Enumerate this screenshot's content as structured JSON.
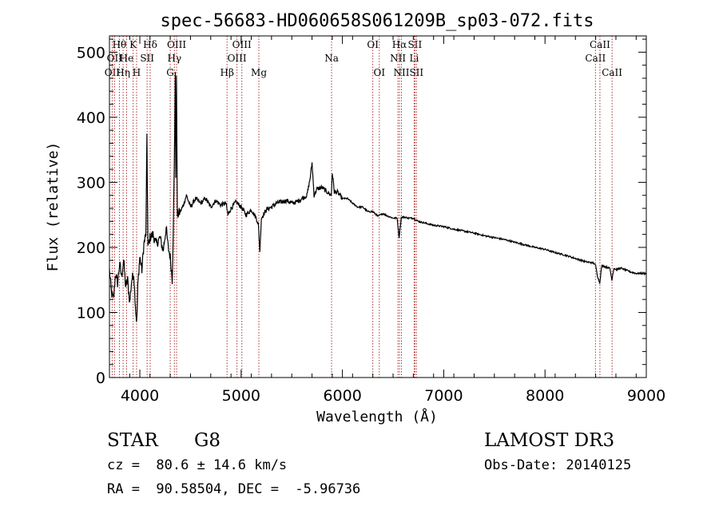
{
  "chart_data": {
    "type": "line",
    "title": "spec-56683-HD060658S061209B_sp03-072.fits",
    "xlabel": "Wavelength (Å)",
    "ylabel": "Flux (relative)",
    "xlim": [
      3700,
      9000
    ],
    "ylim": [
      0,
      525
    ],
    "xticks": [
      4000,
      5000,
      6000,
      7000,
      8000,
      9000
    ],
    "yticks": [
      0,
      100,
      200,
      300,
      400,
      500
    ],
    "colors": {
      "spectrum": "#000000",
      "lines": "#b03030"
    },
    "spectrum": [
      [
        3700,
        165
      ],
      [
        3720,
        130
      ],
      [
        3740,
        120
      ],
      [
        3760,
        160
      ],
      [
        3780,
        145
      ],
      [
        3800,
        175
      ],
      [
        3820,
        155
      ],
      [
        3840,
        180
      ],
      [
        3860,
        140
      ],
      [
        3880,
        150
      ],
      [
        3900,
        115
      ],
      [
        3920,
        150
      ],
      [
        3940,
        160
      ],
      [
        3960,
        100
      ],
      [
        3970,
        85
      ],
      [
        3980,
        140
      ],
      [
        3990,
        165
      ],
      [
        4000,
        185
      ],
      [
        4020,
        165
      ],
      [
        4040,
        205
      ],
      [
        4060,
        220
      ],
      [
        4070,
        375
      ],
      [
        4080,
        200
      ],
      [
        4100,
        215
      ],
      [
        4130,
        220
      ],
      [
        4160,
        205
      ],
      [
        4200,
        215
      ],
      [
        4230,
        195
      ],
      [
        4260,
        230
      ],
      [
        4280,
        200
      ],
      [
        4300,
        185
      ],
      [
        4320,
        150
      ],
      [
        4330,
        230
      ],
      [
        4340,
        320
      ],
      [
        4350,
        470
      ],
      [
        4355,
        300
      ],
      [
        4362,
        470
      ],
      [
        4370,
        250
      ],
      [
        4400,
        255
      ],
      [
        4430,
        265
      ],
      [
        4460,
        280
      ],
      [
        4500,
        262
      ],
      [
        4550,
        275
      ],
      [
        4600,
        268
      ],
      [
        4650,
        275
      ],
      [
        4700,
        262
      ],
      [
        4750,
        272
      ],
      [
        4800,
        265
      ],
      [
        4850,
        268
      ],
      [
        4870,
        250
      ],
      [
        4900,
        260
      ],
      [
        4950,
        270
      ],
      [
        5000,
        262
      ],
      [
        5050,
        250
      ],
      [
        5100,
        258
      ],
      [
        5150,
        245
      ],
      [
        5170,
        235
      ],
      [
        5185,
        195
      ],
      [
        5200,
        245
      ],
      [
        5250,
        258
      ],
      [
        5300,
        262
      ],
      [
        5350,
        268
      ],
      [
        5400,
        270
      ],
      [
        5450,
        272
      ],
      [
        5500,
        268
      ],
      [
        5550,
        270
      ],
      [
        5600,
        275
      ],
      [
        5650,
        280
      ],
      [
        5680,
        305
      ],
      [
        5700,
        330
      ],
      [
        5720,
        280
      ],
      [
        5750,
        290
      ],
      [
        5800,
        292
      ],
      [
        5850,
        285
      ],
      [
        5890,
        280
      ],
      [
        5900,
        315
      ],
      [
        5920,
        285
      ],
      [
        5950,
        285
      ],
      [
        6000,
        275
      ],
      [
        6050,
        275
      ],
      [
        6100,
        268
      ],
      [
        6150,
        262
      ],
      [
        6200,
        262
      ],
      [
        6250,
        255
      ],
      [
        6300,
        255
      ],
      [
        6350,
        248
      ],
      [
        6400,
        252
      ],
      [
        6450,
        248
      ],
      [
        6500,
        245
      ],
      [
        6540,
        245
      ],
      [
        6560,
        215
      ],
      [
        6580,
        245
      ],
      [
        6600,
        247
      ],
      [
        6650,
        245
      ],
      [
        6700,
        245
      ],
      [
        6750,
        240
      ],
      [
        6800,
        238
      ],
      [
        6900,
        234
      ],
      [
        7000,
        232
      ],
      [
        7100,
        228
      ],
      [
        7200,
        225
      ],
      [
        7300,
        222
      ],
      [
        7400,
        218
      ],
      [
        7500,
        215
      ],
      [
        7600,
        212
      ],
      [
        7700,
        208
      ],
      [
        7800,
        204
      ],
      [
        7900,
        200
      ],
      [
        8000,
        197
      ],
      [
        8100,
        192
      ],
      [
        8200,
        188
      ],
      [
        8300,
        183
      ],
      [
        8400,
        178
      ],
      [
        8480,
        176
      ],
      [
        8500,
        172
      ],
      [
        8520,
        155
      ],
      [
        8540,
        145
      ],
      [
        8560,
        172
      ],
      [
        8600,
        170
      ],
      [
        8640,
        168
      ],
      [
        8660,
        150
      ],
      [
        8680,
        168
      ],
      [
        8700,
        166
      ],
      [
        8750,
        168
      ],
      [
        8800,
        165
      ],
      [
        8850,
        162
      ],
      [
        8900,
        160
      ],
      [
        8950,
        160
      ],
      [
        9000,
        160
      ]
    ],
    "lines": [
      {
        "wl": 3727,
        "label": "OII",
        "row": 2
      },
      {
        "wl": 3750,
        "label": "OII",
        "row": 1
      },
      {
        "wl": 3798,
        "label": "Hθ",
        "row": 0
      },
      {
        "wl": 3835,
        "label": "Hη",
        "row": 2
      },
      {
        "wl": 3869,
        "label": "He",
        "row": 1
      },
      {
        "wl": 3934,
        "label": "K",
        "row": 0
      },
      {
        "wl": 3968,
        "label": "H",
        "row": 2
      },
      {
        "wl": 4072,
        "label": "SII",
        "row": 1
      },
      {
        "wl": 4102,
        "label": "Hδ",
        "row": 0
      },
      {
        "wl": 4300,
        "label": "G",
        "row": 2
      },
      {
        "wl": 4341,
        "label": "Hγ",
        "row": 1
      },
      {
        "wl": 4363,
        "label": "OIII",
        "row": 0
      },
      {
        "wl": 4861,
        "label": "Hβ",
        "row": 2
      },
      {
        "wl": 4959,
        "label": "OIII",
        "row": 1
      },
      {
        "wl": 5007,
        "label": "OIII",
        "row": 0
      },
      {
        "wl": 5175,
        "label": "Mg",
        "row": 2
      },
      {
        "wl": 5893,
        "label": "Na",
        "row": 1
      },
      {
        "wl": 6300,
        "label": "OI",
        "row": 0
      },
      {
        "wl": 6364,
        "label": "OI",
        "row": 2
      },
      {
        "wl": 6548,
        "label": "NII",
        "row": 1
      },
      {
        "wl": 6563,
        "label": "Hα",
        "row": 0
      },
      {
        "wl": 6583,
        "label": "NII",
        "row": 2
      },
      {
        "wl": 6708,
        "label": "Li",
        "row": 1
      },
      {
        "wl": 6716,
        "label": "SII",
        "row": 0
      },
      {
        "wl": 6731,
        "label": "SII",
        "row": 2
      },
      {
        "wl": 8498,
        "label": "CaII",
        "row": 1
      },
      {
        "wl": 8542,
        "label": "CaII",
        "row": 0
      },
      {
        "wl": 8662,
        "label": "CaII",
        "row": 2
      }
    ]
  },
  "info": {
    "object_class": "STAR",
    "subclass": "G8",
    "survey": "LAMOST DR3",
    "redshift": "cz =  80.6 ± 14.6 km/s",
    "obs_date": "Obs-Date: 20140125",
    "coords": "RA =  90.58504, DEC =  -5.96736"
  }
}
